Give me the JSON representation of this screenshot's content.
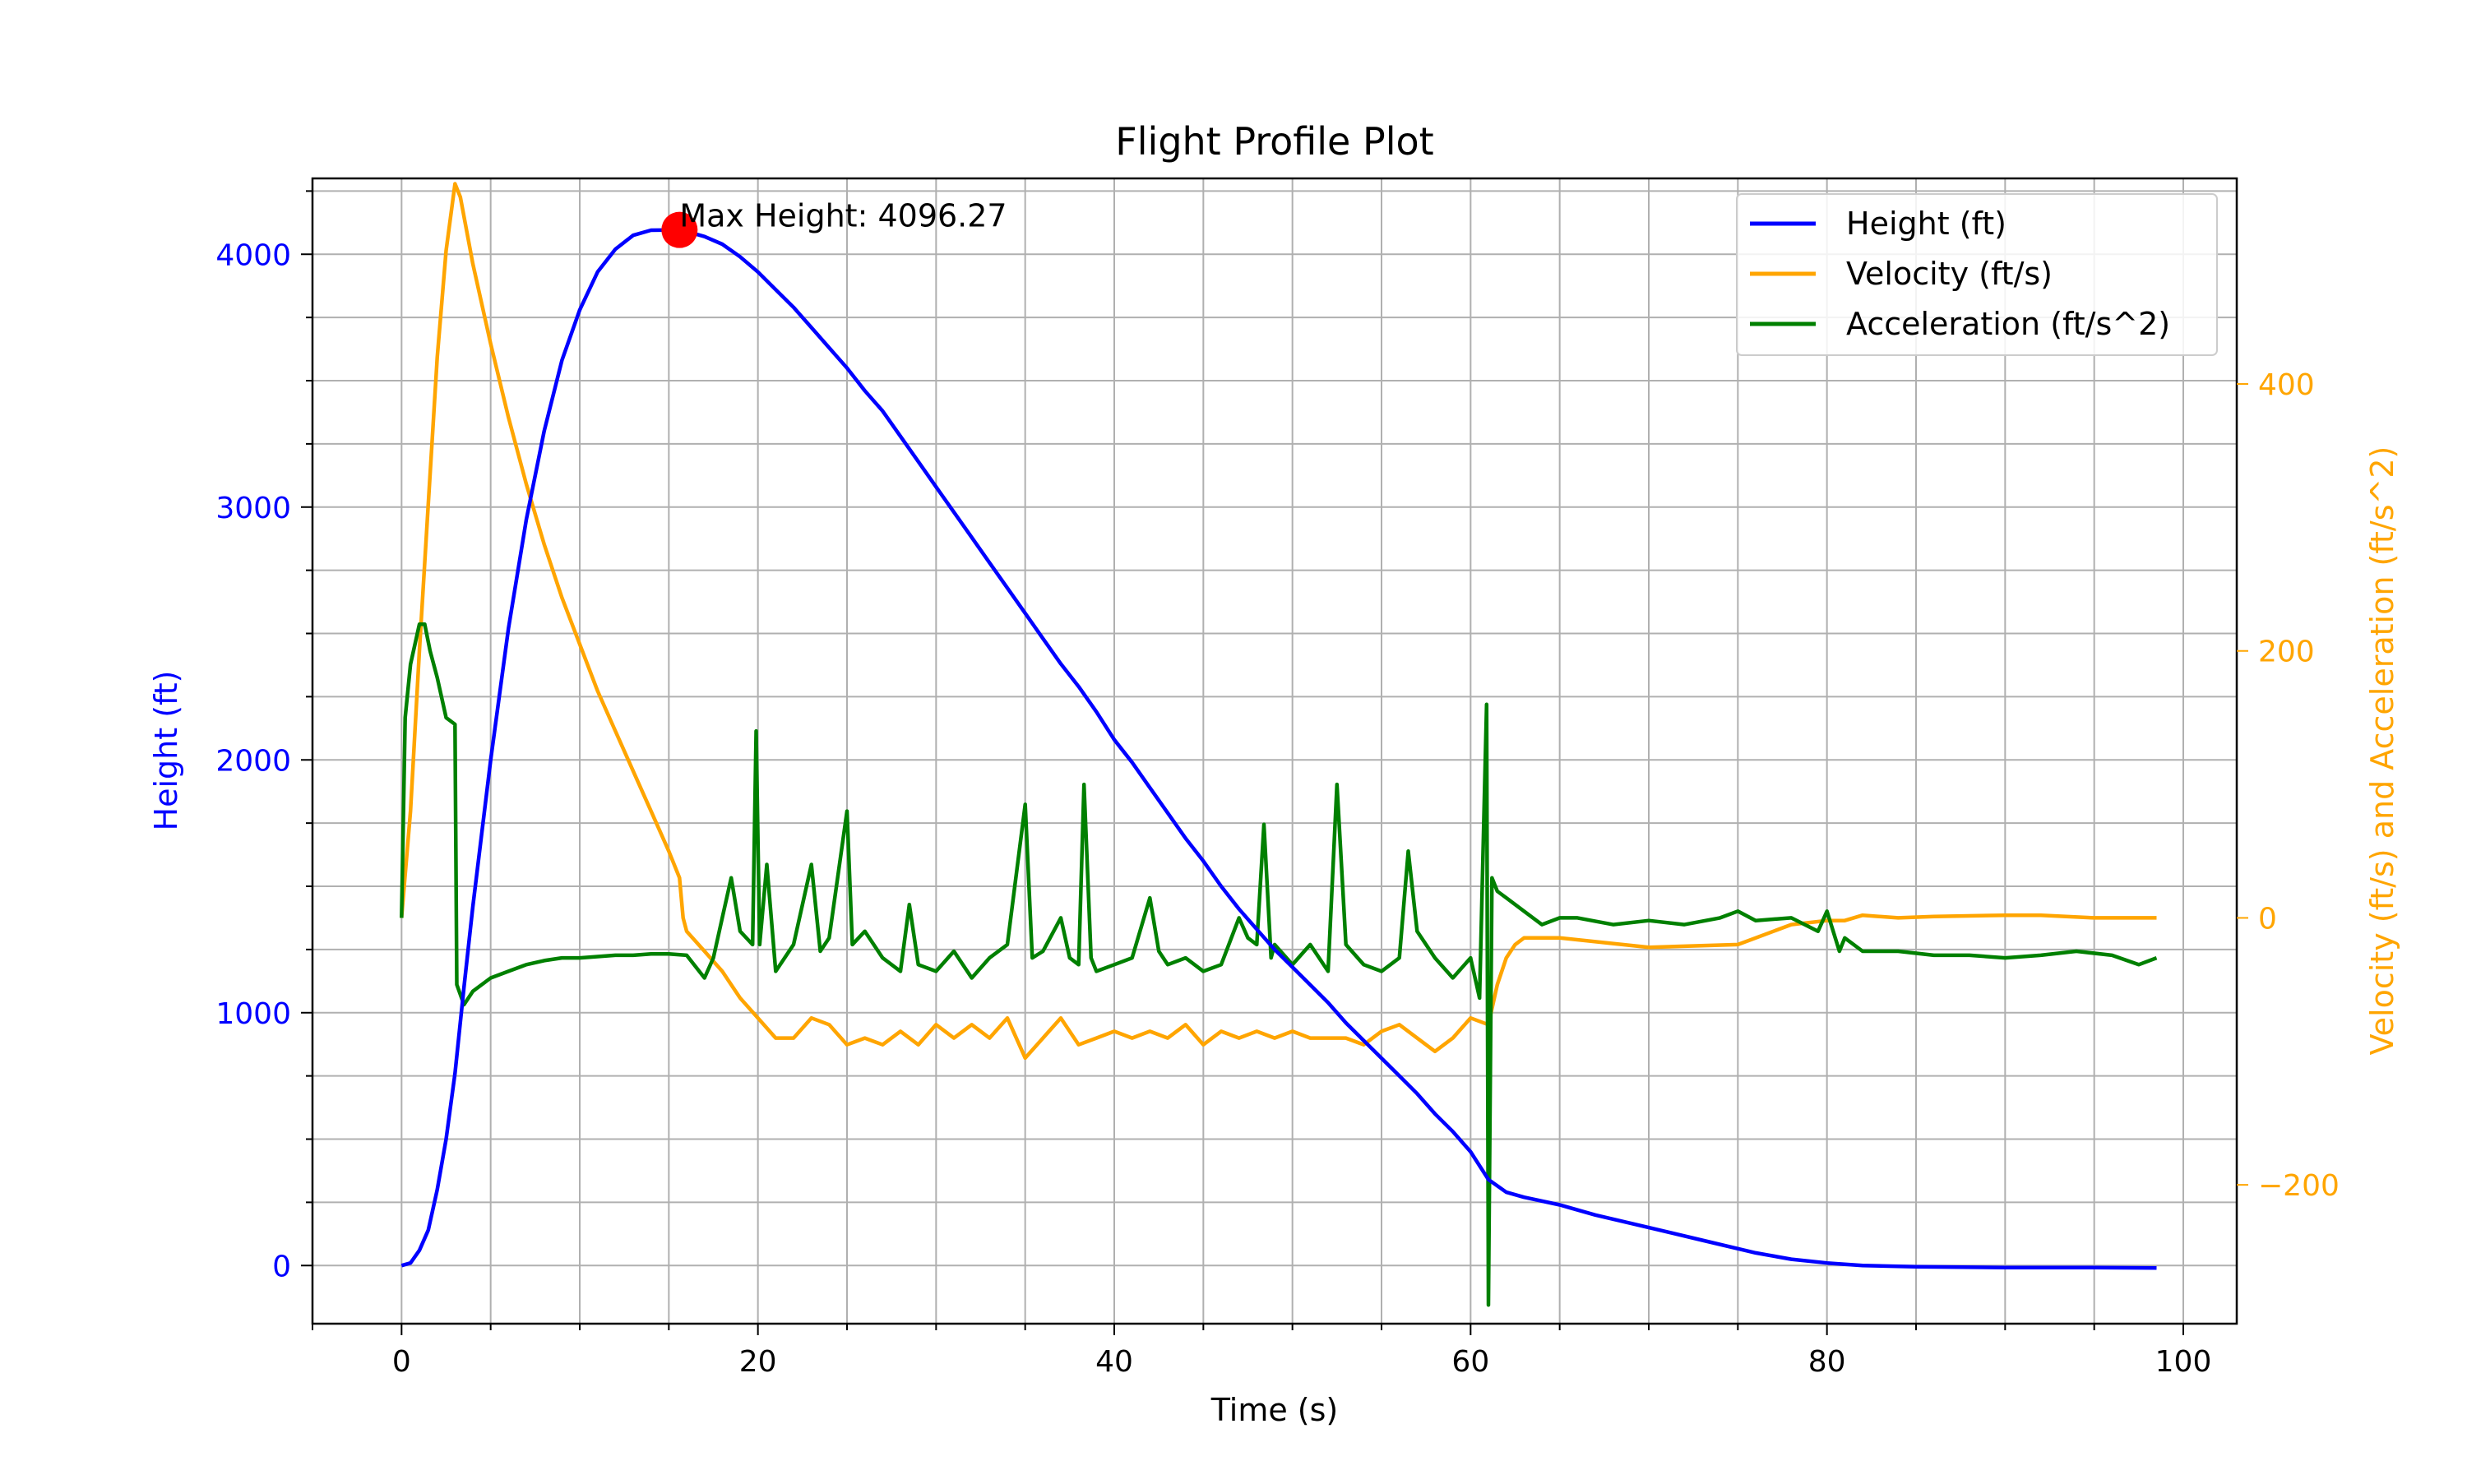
{
  "chart_data": {
    "type": "line",
    "title": "Flight Profile Plot",
    "xlabel": "Time (s)",
    "ylabel_left": "Height (ft)",
    "ylabel_right": "Velocity (ft/s) and Acceleration (ft/s^2)",
    "xlim": [
      -5,
      103
    ],
    "ylim_left": [
      -230,
      4300
    ],
    "ylim_right": [
      -304,
      554
    ],
    "x_ticks": [
      0,
      20,
      40,
      60,
      80,
      100
    ],
    "y_left_ticks": [
      0,
      1000,
      2000,
      3000,
      4000
    ],
    "y_right_ticks": [
      -200,
      0,
      200,
      400
    ],
    "grid": true,
    "legend_position": "top-right",
    "colors": {
      "height": "#0000ff",
      "velocity": "#ffa500",
      "acceleration": "#008000",
      "marker": "#ff0000",
      "left_axis": "#0000ff",
      "right_axis": "#ffa500"
    },
    "annotation": {
      "text": "Max Height: 4096.27",
      "x": 15.6,
      "y": 4096.27
    },
    "series": [
      {
        "name": "Height (ft)",
        "axis": "left",
        "color": "#0000ff",
        "points": [
          [
            0,
            0
          ],
          [
            0.5,
            10
          ],
          [
            1,
            60
          ],
          [
            1.5,
            140
          ],
          [
            2,
            300
          ],
          [
            2.5,
            500
          ],
          [
            3,
            760
          ],
          [
            3.5,
            1100
          ],
          [
            4,
            1420
          ],
          [
            5,
            2000
          ],
          [
            6,
            2520
          ],
          [
            7,
            2950
          ],
          [
            8,
            3300
          ],
          [
            9,
            3580
          ],
          [
            10,
            3780
          ],
          [
            11,
            3930
          ],
          [
            12,
            4020
          ],
          [
            13,
            4075
          ],
          [
            14,
            4095
          ],
          [
            15,
            4096
          ],
          [
            15.6,
            4096.27
          ],
          [
            16,
            4090
          ],
          [
            17,
            4070
          ],
          [
            18,
            4040
          ],
          [
            19,
            3990
          ],
          [
            20,
            3930
          ],
          [
            21,
            3860
          ],
          [
            22,
            3790
          ],
          [
            23,
            3710
          ],
          [
            24,
            3630
          ],
          [
            25,
            3550
          ],
          [
            26,
            3460
          ],
          [
            27,
            3380
          ],
          [
            28,
            3280
          ],
          [
            29,
            3180
          ],
          [
            30,
            3080
          ],
          [
            31,
            2980
          ],
          [
            32,
            2880
          ],
          [
            33,
            2780
          ],
          [
            34,
            2680
          ],
          [
            35,
            2580
          ],
          [
            36,
            2480
          ],
          [
            37,
            2380
          ],
          [
            38,
            2290
          ],
          [
            39,
            2190
          ],
          [
            40,
            2080
          ],
          [
            41,
            1990
          ],
          [
            42,
            1890
          ],
          [
            43,
            1790
          ],
          [
            44,
            1690
          ],
          [
            45,
            1600
          ],
          [
            46,
            1500
          ],
          [
            47,
            1410
          ],
          [
            48,
            1330
          ],
          [
            49,
            1250
          ],
          [
            50,
            1180
          ],
          [
            51,
            1110
          ],
          [
            52,
            1040
          ],
          [
            53,
            960
          ],
          [
            54,
            890
          ],
          [
            55,
            820
          ],
          [
            56,
            750
          ],
          [
            57,
            680
          ],
          [
            58,
            600
          ],
          [
            59,
            530
          ],
          [
            60,
            450
          ],
          [
            61,
            340
          ],
          [
            62,
            290
          ],
          [
            63,
            270
          ],
          [
            65,
            240
          ],
          [
            67,
            200
          ],
          [
            70,
            150
          ],
          [
            73,
            100
          ],
          [
            76,
            50
          ],
          [
            78,
            25
          ],
          [
            80,
            10
          ],
          [
            82,
            0
          ],
          [
            85,
            -5
          ],
          [
            90,
            -8
          ],
          [
            95,
            -8
          ],
          [
            98.5,
            -10
          ]
        ]
      },
      {
        "name": "Velocity (ft/s)",
        "axis": "right",
        "color": "#ffa500",
        "points": [
          [
            0,
            0
          ],
          [
            0.5,
            80
          ],
          [
            1,
            200
          ],
          [
            1.5,
            310
          ],
          [
            2,
            420
          ],
          [
            2.5,
            500
          ],
          [
            3,
            550
          ],
          [
            3.3,
            540
          ],
          [
            4,
            490
          ],
          [
            5,
            430
          ],
          [
            6,
            375
          ],
          [
            7,
            325
          ],
          [
            8,
            280
          ],
          [
            9,
            240
          ],
          [
            10,
            205
          ],
          [
            11,
            170
          ],
          [
            12,
            140
          ],
          [
            13,
            110
          ],
          [
            14,
            80
          ],
          [
            15,
            50
          ],
          [
            15.6,
            30
          ],
          [
            15.8,
            0
          ],
          [
            16,
            -10
          ],
          [
            17,
            -25
          ],
          [
            18,
            -40
          ],
          [
            19,
            -60
          ],
          [
            20,
            -75
          ],
          [
            21,
            -90
          ],
          [
            22,
            -90
          ],
          [
            23,
            -75
          ],
          [
            24,
            -80
          ],
          [
            25,
            -95
          ],
          [
            26,
            -90
          ],
          [
            27,
            -95
          ],
          [
            28,
            -85
          ],
          [
            29,
            -95
          ],
          [
            30,
            -80
          ],
          [
            31,
            -90
          ],
          [
            32,
            -80
          ],
          [
            33,
            -90
          ],
          [
            34,
            -75
          ],
          [
            35,
            -105
          ],
          [
            36,
            -90
          ],
          [
            37,
            -75
          ],
          [
            38,
            -95
          ],
          [
            39,
            -90
          ],
          [
            40,
            -85
          ],
          [
            41,
            -90
          ],
          [
            42,
            -85
          ],
          [
            43,
            -90
          ],
          [
            44,
            -80
          ],
          [
            45,
            -95
          ],
          [
            46,
            -85
          ],
          [
            47,
            -90
          ],
          [
            48,
            -85
          ],
          [
            49,
            -90
          ],
          [
            50,
            -85
          ],
          [
            51,
            -90
          ],
          [
            52,
            -90
          ],
          [
            53,
            -90
          ],
          [
            54,
            -95
          ],
          [
            55,
            -85
          ],
          [
            56,
            -80
          ],
          [
            57,
            -90
          ],
          [
            58,
            -100
          ],
          [
            59,
            -90
          ],
          [
            60,
            -75
          ],
          [
            61,
            -80
          ],
          [
            61.5,
            -50
          ],
          [
            62,
            -30
          ],
          [
            62.5,
            -20
          ],
          [
            63,
            -15
          ],
          [
            65,
            -15
          ],
          [
            70,
            -22
          ],
          [
            75,
            -20
          ],
          [
            77,
            -10
          ],
          [
            78,
            -5
          ],
          [
            80,
            -2
          ],
          [
            81,
            -2
          ],
          [
            82,
            2
          ],
          [
            84,
            0
          ],
          [
            86,
            1
          ],
          [
            90,
            2
          ],
          [
            92,
            2
          ],
          [
            95,
            0
          ],
          [
            98.5,
            0
          ]
        ]
      },
      {
        "name": "Acceleration (ft/s^2)",
        "axis": "right",
        "color": "#008000",
        "points": [
          [
            0,
            0
          ],
          [
            0.2,
            150
          ],
          [
            0.5,
            190
          ],
          [
            1,
            220
          ],
          [
            1.3,
            220
          ],
          [
            1.6,
            200
          ],
          [
            2,
            180
          ],
          [
            2.5,
            150
          ],
          [
            3,
            145
          ],
          [
            3.1,
            -50
          ],
          [
            3.5,
            -65
          ],
          [
            4,
            -55
          ],
          [
            5,
            -45
          ],
          [
            6,
            -40
          ],
          [
            7,
            -35
          ],
          [
            8,
            -32
          ],
          [
            9,
            -30
          ],
          [
            10,
            -30
          ],
          [
            11,
            -29
          ],
          [
            12,
            -28
          ],
          [
            13,
            -28
          ],
          [
            14,
            -27
          ],
          [
            15,
            -27
          ],
          [
            16,
            -28
          ],
          [
            17,
            -45
          ],
          [
            17.5,
            -30
          ],
          [
            18,
            0
          ],
          [
            18.5,
            30
          ],
          [
            19,
            -10
          ],
          [
            19.7,
            -20
          ],
          [
            19.9,
            140
          ],
          [
            20.1,
            -20
          ],
          [
            20.5,
            40
          ],
          [
            21,
            -40
          ],
          [
            22,
            -20
          ],
          [
            23,
            40
          ],
          [
            23.5,
            -25
          ],
          [
            24,
            -15
          ],
          [
            25,
            80
          ],
          [
            25.3,
            -20
          ],
          [
            26,
            -10
          ],
          [
            27,
            -30
          ],
          [
            28,
            -40
          ],
          [
            28.5,
            10
          ],
          [
            29,
            -35
          ],
          [
            30,
            -40
          ],
          [
            31,
            -25
          ],
          [
            32,
            -45
          ],
          [
            33,
            -30
          ],
          [
            34,
            -20
          ],
          [
            35,
            85
          ],
          [
            35.4,
            -30
          ],
          [
            36,
            -25
          ],
          [
            37,
            0
          ],
          [
            37.5,
            -30
          ],
          [
            38,
            -35
          ],
          [
            38.3,
            100
          ],
          [
            38.7,
            -30
          ],
          [
            39,
            -40
          ],
          [
            40,
            -35
          ],
          [
            41,
            -30
          ],
          [
            42,
            15
          ],
          [
            42.5,
            -25
          ],
          [
            43,
            -35
          ],
          [
            44,
            -30
          ],
          [
            45,
            -40
          ],
          [
            46,
            -35
          ],
          [
            47,
            0
          ],
          [
            47.5,
            -15
          ],
          [
            48,
            -20
          ],
          [
            48.4,
            70
          ],
          [
            48.8,
            -30
          ],
          [
            49,
            -20
          ],
          [
            50,
            -35
          ],
          [
            51,
            -20
          ],
          [
            52,
            -40
          ],
          [
            52.5,
            100
          ],
          [
            53,
            -20
          ],
          [
            54,
            -35
          ],
          [
            55,
            -40
          ],
          [
            56,
            -30
          ],
          [
            56.5,
            50
          ],
          [
            57,
            -10
          ],
          [
            58,
            -30
          ],
          [
            59,
            -45
          ],
          [
            60,
            -30
          ],
          [
            60.5,
            -60
          ],
          [
            60.9,
            160
          ],
          [
            61,
            -290
          ],
          [
            61.2,
            30
          ],
          [
            61.5,
            20
          ],
          [
            62,
            15
          ],
          [
            63,
            5
          ],
          [
            64,
            -5
          ],
          [
            65,
            0
          ],
          [
            66,
            0
          ],
          [
            68,
            -5
          ],
          [
            70,
            -2
          ],
          [
            72,
            -5
          ],
          [
            74,
            0
          ],
          [
            75,
            5
          ],
          [
            76,
            -2
          ],
          [
            78,
            0
          ],
          [
            79.5,
            -10
          ],
          [
            80,
            5
          ],
          [
            80.7,
            -25
          ],
          [
            81,
            -15
          ],
          [
            82,
            -25
          ],
          [
            84,
            -25
          ],
          [
            86,
            -28
          ],
          [
            88,
            -28
          ],
          [
            90,
            -30
          ],
          [
            92,
            -28
          ],
          [
            94,
            -25
          ],
          [
            96,
            -28
          ],
          [
            97.5,
            -35
          ],
          [
            98.5,
            -30
          ]
        ]
      }
    ]
  }
}
